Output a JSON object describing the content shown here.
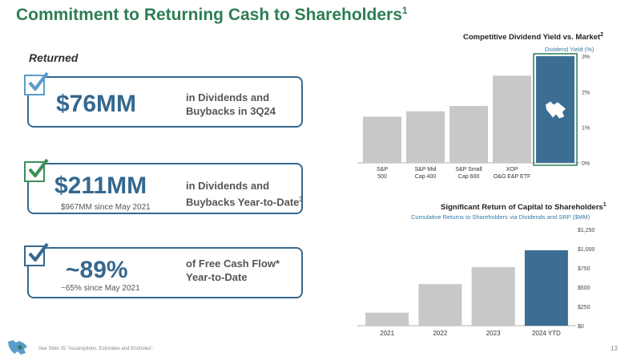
{
  "slide": {
    "title": "Commitment to Returning Cash to Shareholders",
    "title_footnote": "1",
    "section_label": "Returned",
    "footer_note": "See Slide 35 \"Assumptions, Estimates and Endnotes\".",
    "page_number": "13"
  },
  "cards": [
    {
      "amount": "$76MM",
      "desc1": "in Dividends and",
      "desc2": "Buybacks in 3Q24",
      "desc_footnote": "",
      "since": "",
      "check_color": "#5a9bc9"
    },
    {
      "amount": "$211MM",
      "desc1": "in Dividends and",
      "desc2": "Buybacks Year-to-Date",
      "desc_footnote": "3",
      "since": "$967MM since May 2021",
      "check_color": "#3d8f5a"
    },
    {
      "amount": "~89%",
      "desc1": "of Free Cash Flow*",
      "desc2": "Year-to-Date",
      "desc_footnote": "",
      "since": "~65% since May 2021",
      "check_color": "#35688f"
    }
  ],
  "colors": {
    "brand_green": "#2e7d55",
    "brand_blue": "#35688f",
    "bar_gray": "#c8c8c8",
    "highlight_blue": "#3c6e94",
    "subtitle_blue": "#2f7aa9"
  },
  "chart_data": [
    {
      "type": "bar",
      "title": "Competitive Dividend Yield vs. Market",
      "title_footnote": "2",
      "subtitle": "Dividend Yield (%)",
      "categories": [
        [
          "S&P",
          "500"
        ],
        [
          "S&P Mid",
          "Cap 400"
        ],
        [
          "S&P Small",
          "Cap 600"
        ],
        [
          "XOP",
          "O&G E&P ETF"
        ],
        [
          ""
        ]
      ],
      "values": [
        1.3,
        1.45,
        1.6,
        2.45,
        3.0
      ],
      "highlight_index": 4,
      "highlight_icon": "company-logo-icon",
      "ylim": [
        0,
        3
      ],
      "yticks": [
        0,
        1,
        2,
        3
      ],
      "ytick_labels": [
        "0%",
        "1%",
        "2%",
        "3%"
      ],
      "grid": false,
      "axis_side": "right"
    },
    {
      "type": "bar",
      "title": "Significant Return of Capital to Shareholders",
      "title_footnote": "1",
      "subtitle": "Cumulative Returns to Shareholders via Dividends and SRP ($MM)",
      "categories": [
        "2021",
        "2022",
        "2023",
        "2024 YTD"
      ],
      "values": [
        170,
        540,
        760,
        980
      ],
      "highlight_index": 3,
      "ylim": [
        0,
        1250
      ],
      "yticks": [
        0,
        250,
        500,
        750,
        1000,
        1250
      ],
      "ytick_labels": [
        "$0",
        "$250",
        "$500",
        "$750",
        "$1,000",
        "$1,250"
      ],
      "grid": false,
      "axis_side": "right"
    }
  ]
}
